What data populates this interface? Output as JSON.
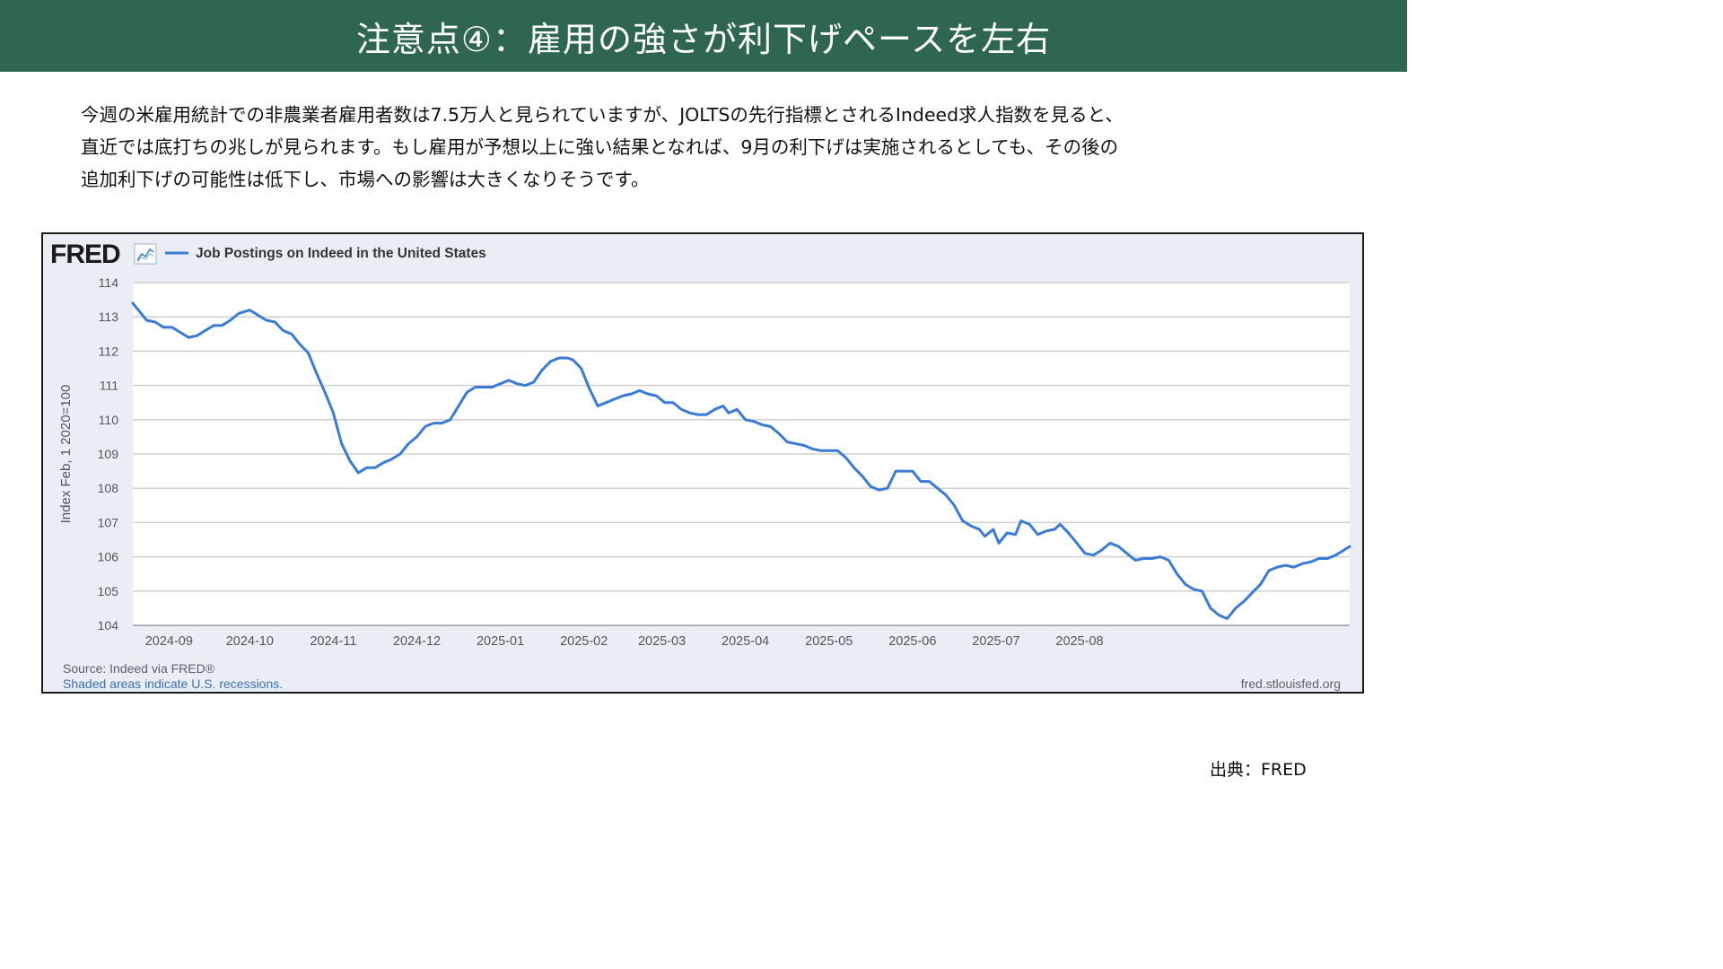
{
  "header": {
    "title": "注意点④：雇用の強さが利下げペースを左右"
  },
  "intro": {
    "lines": [
      "今週の米雇用統計での非農業者雇用者数は7.5万人と見られていますが、JOLTSの先行指標とされるIndeed求人指数を見ると、",
      "直近では底打ちの兆しが見られます。もし雇用が予想以上に強い結果となれば、9月の利下げは実施されるとしても、その後の",
      "追加利下げの可能性は低下し、市場への影響は大きくなりそうです。"
    ]
  },
  "fred": {
    "logo_text": "FRED",
    "graph_icon": "line-graph-icon",
    "source_line": "Source: Indeed via FRED®",
    "shaded_line": "Shaded areas indicate U.S. recessions.",
    "site": "fred.stlouisfed.org"
  },
  "credit": "出典：FRED",
  "colors": {
    "banner": "#2e6650",
    "line": "#3a7bd5",
    "panel": "#e9eef5"
  },
  "chart_data": {
    "type": "line",
    "series": [
      {
        "name": "Job Postings on Indeed in the United States",
        "points": [
          [
            "2024-08-18",
            113.4
          ],
          [
            "2024-08-20",
            113.2
          ],
          [
            "2024-08-23",
            112.9
          ],
          [
            "2024-08-26",
            112.85
          ],
          [
            "2024-08-29",
            112.7
          ],
          [
            "2024-09-01",
            112.7
          ],
          [
            "2024-09-04",
            112.55
          ],
          [
            "2024-09-07",
            112.4
          ],
          [
            "2024-09-10",
            112.45
          ],
          [
            "2024-09-13",
            112.6
          ],
          [
            "2024-09-16",
            112.75
          ],
          [
            "2024-09-19",
            112.75
          ],
          [
            "2024-09-22",
            112.9
          ],
          [
            "2024-09-25",
            113.1
          ],
          [
            "2024-09-29",
            113.2
          ],
          [
            "2024-10-02",
            113.05
          ],
          [
            "2024-10-05",
            112.9
          ],
          [
            "2024-10-08",
            112.85
          ],
          [
            "2024-10-11",
            112.6
          ],
          [
            "2024-10-14",
            112.5
          ],
          [
            "2024-10-17",
            112.2
          ],
          [
            "2024-10-20",
            111.95
          ],
          [
            "2024-10-23",
            111.35
          ],
          [
            "2024-10-26",
            110.8
          ],
          [
            "2024-10-29",
            110.2
          ],
          [
            "2024-11-01",
            109.3
          ],
          [
            "2024-11-04",
            108.8
          ],
          [
            "2024-11-07",
            108.45
          ],
          [
            "2024-11-10",
            108.6
          ],
          [
            "2024-11-13",
            108.6
          ],
          [
            "2024-11-16",
            108.75
          ],
          [
            "2024-11-19",
            108.85
          ],
          [
            "2024-11-22",
            109.0
          ],
          [
            "2024-11-25",
            109.3
          ],
          [
            "2024-11-28",
            109.5
          ],
          [
            "2024-12-01",
            109.8
          ],
          [
            "2024-12-04",
            109.9
          ],
          [
            "2024-12-07",
            109.9
          ],
          [
            "2024-12-10",
            110.0
          ],
          [
            "2024-12-13",
            110.4
          ],
          [
            "2024-12-16",
            110.8
          ],
          [
            "2024-12-19",
            110.95
          ],
          [
            "2024-12-22",
            110.95
          ],
          [
            "2024-12-25",
            110.95
          ],
          [
            "2024-12-28",
            111.05
          ],
          [
            "2024-12-31",
            111.15
          ],
          [
            "2025-01-03",
            111.05
          ],
          [
            "2025-01-06",
            111.0
          ],
          [
            "2025-01-09",
            111.1
          ],
          [
            "2025-01-12",
            111.45
          ],
          [
            "2025-01-15",
            111.7
          ],
          [
            "2025-01-18",
            111.8
          ],
          [
            "2025-01-21",
            111.8
          ],
          [
            "2025-01-23",
            111.75
          ],
          [
            "2025-01-26",
            111.5
          ],
          [
            "2025-01-29",
            110.9
          ],
          [
            "2025-02-01",
            110.4
          ],
          [
            "2025-02-04",
            110.5
          ],
          [
            "2025-02-07",
            110.6
          ],
          [
            "2025-02-10",
            110.7
          ],
          [
            "2025-02-13",
            110.75
          ],
          [
            "2025-02-16",
            110.85
          ],
          [
            "2025-02-19",
            110.75
          ],
          [
            "2025-02-22",
            110.7
          ],
          [
            "2025-02-25",
            110.5
          ],
          [
            "2025-02-28",
            110.5
          ],
          [
            "2025-03-03",
            110.3
          ],
          [
            "2025-03-06",
            110.2
          ],
          [
            "2025-03-09",
            110.15
          ],
          [
            "2025-03-12",
            110.15
          ],
          [
            "2025-03-15",
            110.3
          ],
          [
            "2025-03-18",
            110.4
          ],
          [
            "2025-03-20",
            110.2
          ],
          [
            "2025-03-23",
            110.3
          ],
          [
            "2025-03-26",
            110.0
          ],
          [
            "2025-03-29",
            109.95
          ],
          [
            "2025-04-01",
            109.85
          ],
          [
            "2025-04-04",
            109.8
          ],
          [
            "2025-04-07",
            109.6
          ],
          [
            "2025-04-10",
            109.35
          ],
          [
            "2025-04-13",
            109.3
          ],
          [
            "2025-04-16",
            109.25
          ],
          [
            "2025-04-19",
            109.15
          ],
          [
            "2025-04-22",
            109.1
          ],
          [
            "2025-04-25",
            109.1
          ],
          [
            "2025-04-28",
            109.1
          ],
          [
            "2025-05-01",
            108.9
          ],
          [
            "2025-05-04",
            108.6
          ],
          [
            "2025-05-07",
            108.35
          ],
          [
            "2025-05-10",
            108.05
          ],
          [
            "2025-05-13",
            107.95
          ],
          [
            "2025-05-16",
            108.0
          ],
          [
            "2025-05-19",
            108.5
          ],
          [
            "2025-05-22",
            108.5
          ],
          [
            "2025-05-25",
            108.5
          ],
          [
            "2025-05-28",
            108.2
          ],
          [
            "2025-05-31",
            108.2
          ],
          [
            "2025-06-03",
            108.0
          ],
          [
            "2025-06-06",
            107.8
          ],
          [
            "2025-06-09",
            107.5
          ],
          [
            "2025-06-12",
            107.05
          ],
          [
            "2025-06-15",
            106.9
          ],
          [
            "2025-06-18",
            106.8
          ],
          [
            "2025-06-20",
            106.6
          ],
          [
            "2025-06-23",
            106.8
          ],
          [
            "2025-06-25",
            106.4
          ],
          [
            "2025-06-28",
            106.7
          ],
          [
            "2025-07-01",
            106.65
          ],
          [
            "2025-07-03",
            107.05
          ],
          [
            "2025-07-06",
            106.95
          ],
          [
            "2025-07-09",
            106.65
          ],
          [
            "2025-07-12",
            106.75
          ],
          [
            "2025-07-15",
            106.8
          ],
          [
            "2025-07-17",
            106.95
          ],
          [
            "2025-07-20",
            106.7
          ],
          [
            "2025-07-23",
            106.4
          ],
          [
            "2025-07-26",
            106.1
          ],
          [
            "2025-07-29",
            106.05
          ],
          [
            "2025-08-01",
            106.2
          ],
          [
            "2025-08-04",
            106.4
          ],
          [
            "2025-08-07",
            106.3
          ],
          [
            "2025-08-10",
            106.1
          ],
          [
            "2025-08-13",
            105.9
          ],
          [
            "2025-08-16",
            105.95
          ],
          [
            "2025-08-19",
            105.95
          ],
          [
            "2025-08-22",
            106.0
          ],
          [
            "2025-08-25",
            105.9
          ],
          [
            "2025-08-28",
            105.5
          ],
          [
            "2025-08-31",
            105.2
          ],
          [
            "2025-09-03",
            105.05
          ],
          [
            "2025-09-06",
            105.0
          ],
          [
            "2025-09-09",
            104.5
          ],
          [
            "2025-09-12",
            104.3
          ],
          [
            "2025-09-15",
            104.2
          ],
          [
            "2025-09-18",
            104.5
          ],
          [
            "2025-09-21",
            104.7
          ],
          [
            "2025-09-24",
            104.95
          ],
          [
            "2025-09-27",
            105.2
          ],
          [
            "2025-09-30",
            105.6
          ],
          [
            "2025-10-03",
            105.7
          ],
          [
            "2025-10-06",
            105.75
          ],
          [
            "2025-10-09",
            105.7
          ],
          [
            "2025-10-12",
            105.8
          ],
          [
            "2025-10-15",
            105.85
          ],
          [
            "2025-10-18",
            105.95
          ],
          [
            "2025-10-21",
            105.95
          ],
          [
            "2025-10-24",
            106.05
          ],
          [
            "2025-10-27",
            106.2
          ],
          [
            "2025-10-29",
            106.3
          ]
        ]
      }
    ],
    "x_ticks": [
      "2024-09",
      "2024-10",
      "2024-11",
      "2024-12",
      "2025-01",
      "2025-02",
      "2025-03",
      "2025-04",
      "2025-05",
      "2025-06",
      "2025-07",
      "2025-08"
    ],
    "x_tick_dates": [
      "2024-08-31",
      "2024-09-29",
      "2024-10-29",
      "2024-11-28",
      "2024-12-28",
      "2025-01-27",
      "2025-02-24",
      "2025-03-26",
      "2025-04-25",
      "2025-05-25",
      "2025-06-24",
      "2025-07-24"
    ],
    "xlim": [
      "2024-08-18",
      "2025-10-29"
    ],
    "y_ticks": [
      104,
      105,
      106,
      107,
      108,
      109,
      110,
      111,
      112,
      113,
      114
    ],
    "ylim": [
      104,
      114
    ],
    "ylabel": "Index Feb, 1 2020=100",
    "grid": true,
    "legend": "top-left"
  }
}
